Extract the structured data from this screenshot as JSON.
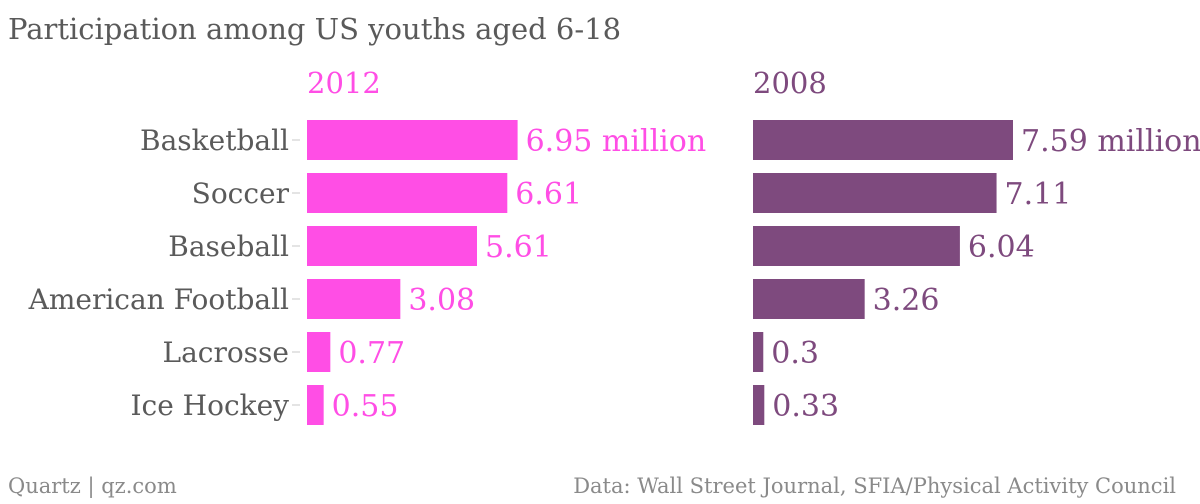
{
  "title": "Participation among US youths aged 6-18",
  "footer": {
    "left": "Quartz | qz.com",
    "right": "Data: Wall Street Journal, SFIA/Physical Activity Council"
  },
  "chart_data": [
    {
      "type": "bar",
      "orientation": "horizontal",
      "title": "2012",
      "color": "#ff4ee5",
      "categories": [
        "Basketball",
        "Soccer",
        "Baseball",
        "American Football",
        "Lacrosse",
        "Ice Hockey"
      ],
      "values": [
        6.95,
        6.61,
        5.61,
        3.08,
        0.77,
        0.55
      ],
      "labels": [
        "6.95 million",
        "6.61",
        "5.61",
        "3.08",
        "0.77",
        "0.55"
      ],
      "xlim": [
        0,
        7.59
      ],
      "grid": false
    },
    {
      "type": "bar",
      "orientation": "horizontal",
      "title": "2008",
      "color": "#7e4a7e",
      "categories": [
        "Basketball",
        "Soccer",
        "Baseball",
        "American Football",
        "Lacrosse",
        "Ice Hockey"
      ],
      "values": [
        7.59,
        7.11,
        6.04,
        3.26,
        0.3,
        0.33
      ],
      "labels": [
        "7.59 million",
        "7.11",
        "6.04",
        "3.26",
        "0.3",
        "0.33"
      ],
      "xlim": [
        0,
        7.59
      ],
      "grid": false
    }
  ]
}
